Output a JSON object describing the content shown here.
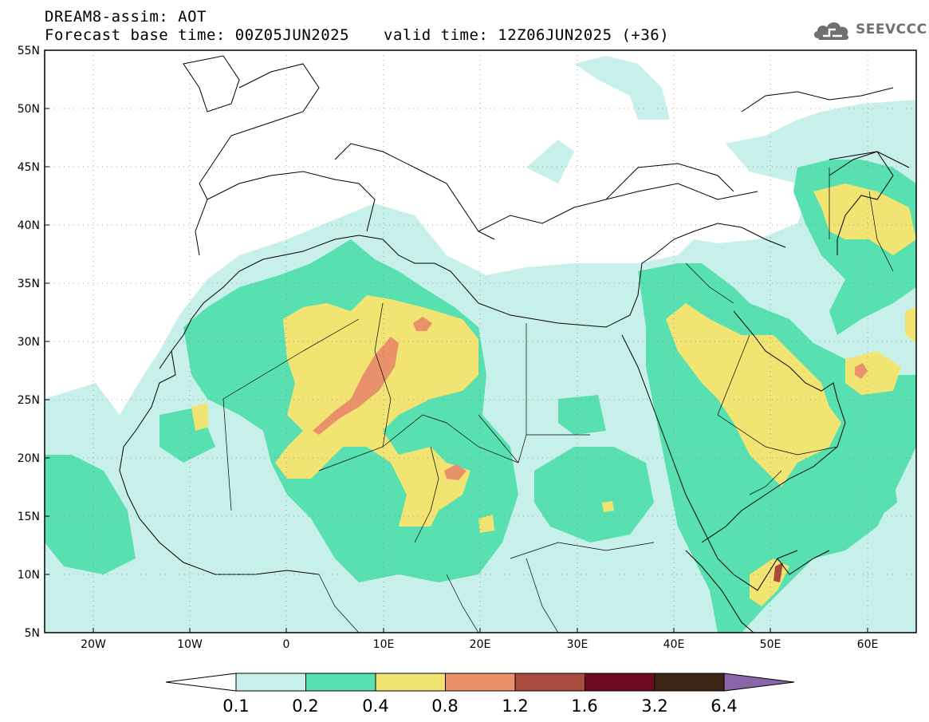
{
  "header": {
    "model_line": "DREAM8-assim: AOT",
    "base_time": "Forecast base time: 00Z05JUN2025",
    "valid_time": "valid time: 12Z06JUN2025 (+36)",
    "logo_text": "SEEVCCC"
  },
  "map": {
    "lon_range": [
      -25,
      65
    ],
    "lat_range": [
      5,
      55
    ],
    "lat_labels": [
      "55N",
      "50N",
      "45N",
      "40N",
      "35N",
      "30N",
      "25N",
      "20N",
      "15N",
      "10N",
      "5N"
    ],
    "lon_labels": [
      "20W",
      "10W",
      "0",
      "10E",
      "20E",
      "30E",
      "40E",
      "50E",
      "60E"
    ],
    "grid_lines": "dotted"
  },
  "legend": {
    "thresholds": [
      "0.1",
      "0.2",
      "0.4",
      "0.8",
      "1.2",
      "1.6",
      "3.2",
      "6.4"
    ],
    "colors": [
      "#c8f0ea",
      "#58e0b0",
      "#f2e473",
      "#e8916a",
      "#a84a3c",
      "#6e0a20",
      "#3e2614",
      "#8866a8"
    ]
  }
}
